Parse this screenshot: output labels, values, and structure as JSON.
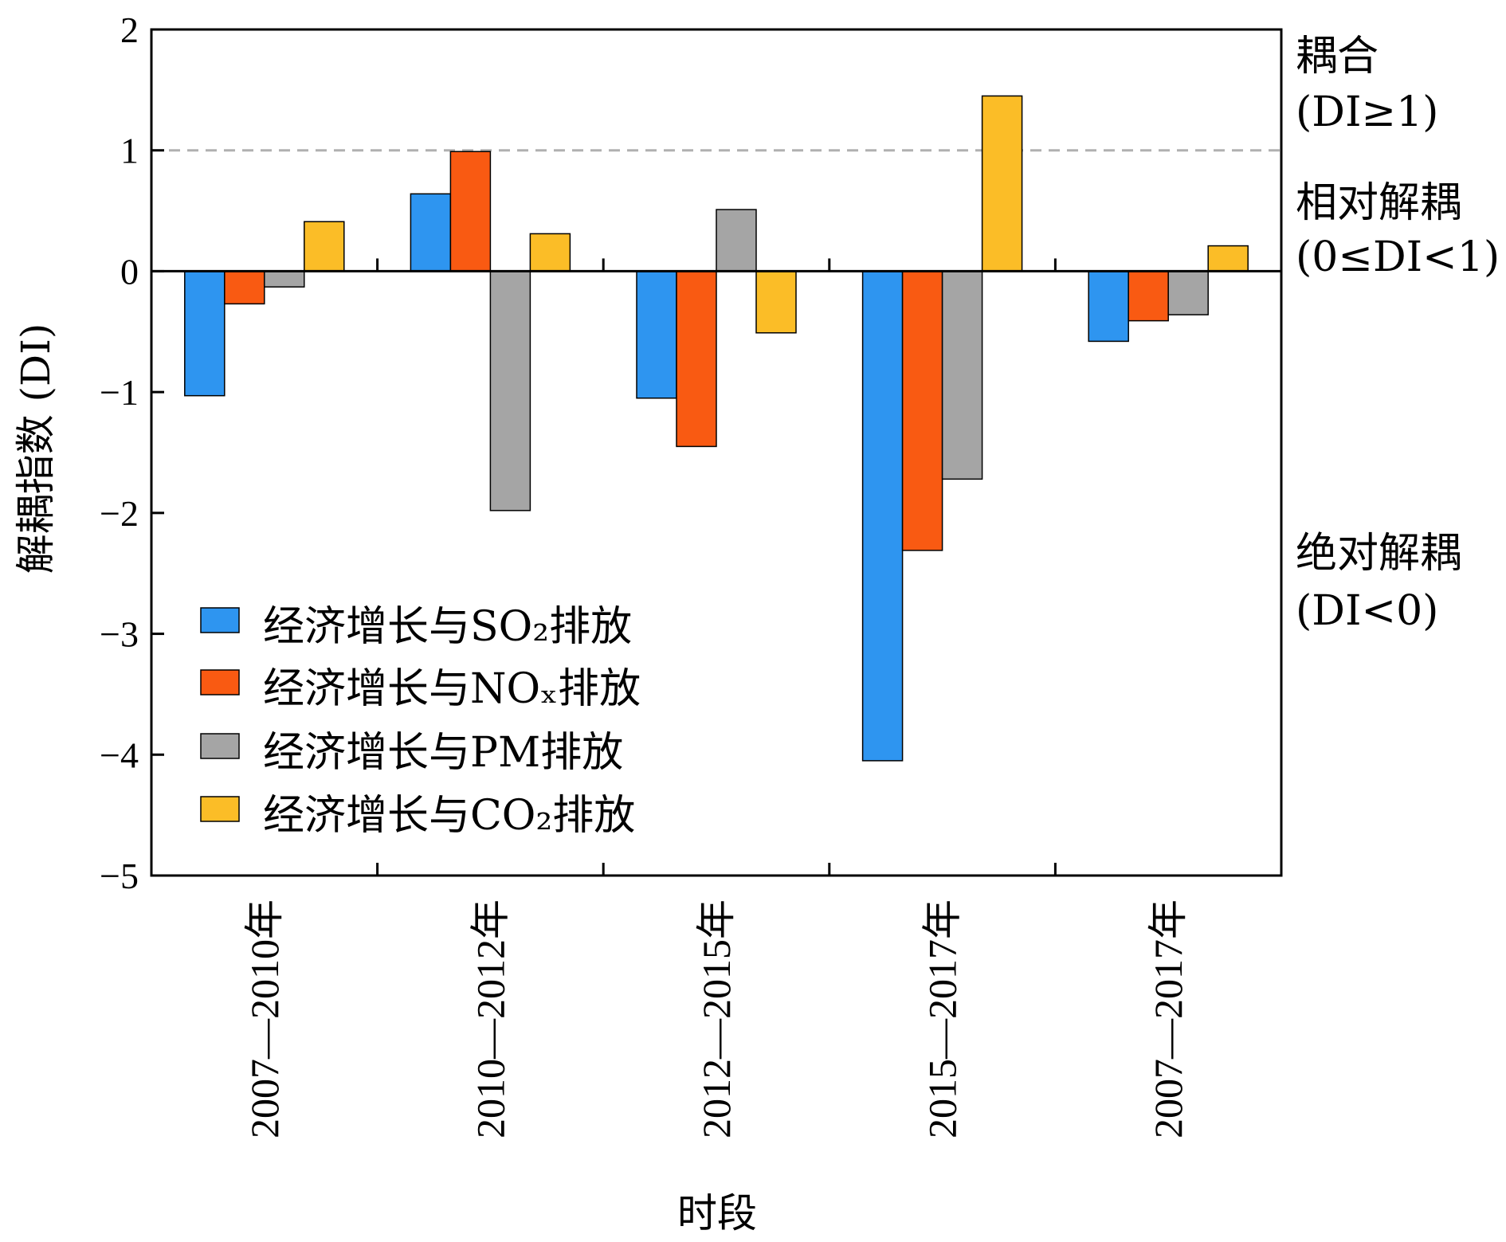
{
  "chart_data": {
    "type": "bar",
    "xlabel": "时段",
    "ylabel": "解耦指数 (DI)",
    "ylim": [
      -5,
      2
    ],
    "yticks": [
      "2",
      "1",
      "0",
      "−1",
      "−2",
      "−3",
      "−4",
      "−5"
    ],
    "categories": [
      "2007—2010年",
      "2010—2012年",
      "2012—2015年",
      "2015—2017年",
      "2007—2017年"
    ],
    "series": [
      {
        "name": "经济增长与SO₂排放",
        "color": "#2e95f0",
        "values": [
          -1.03,
          0.64,
          -1.05,
          -4.05,
          -0.58
        ]
      },
      {
        "name": "经济增长与NOₓ排放",
        "color": "#f95a12",
        "values": [
          -0.27,
          0.99,
          -1.45,
          -2.31,
          -0.41
        ]
      },
      {
        "name": "经济增长与PM排放",
        "color": "#a5a5a5",
        "values": [
          -0.13,
          -1.98,
          0.51,
          -1.72,
          -0.36
        ]
      },
      {
        "name": "经济增长与CO₂排放",
        "color": "#fbbd27",
        "values": [
          0.41,
          0.31,
          -0.51,
          1.45,
          0.21
        ]
      }
    ],
    "reference_line": {
      "y": 1,
      "style": "dashed"
    },
    "legend_position": "bottom-left",
    "grid": false,
    "zones": [
      {
        "title": "耦合",
        "condition": "(DI≥1)"
      },
      {
        "title": "相对解耦",
        "condition": "(0≤DI<1)"
      },
      {
        "title": "绝对解耦",
        "condition": "(DI<0)"
      }
    ]
  }
}
